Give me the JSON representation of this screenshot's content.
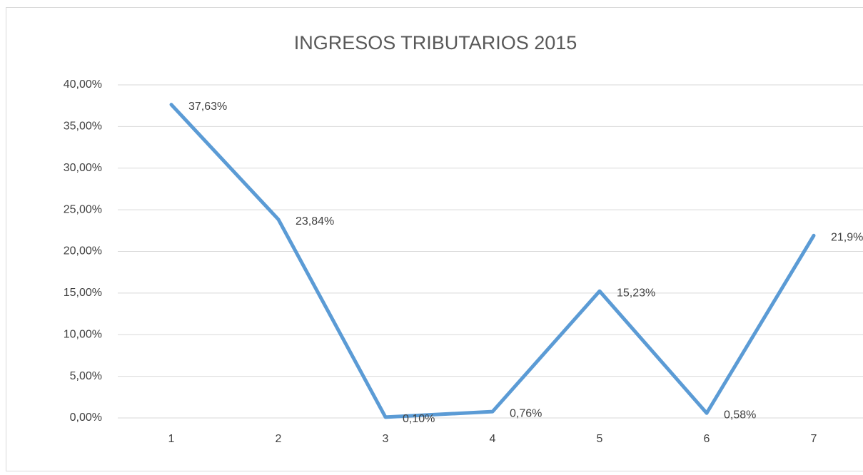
{
  "chart_data": {
    "type": "line",
    "title": "INGRESOS TRIBUTARIOS 2015",
    "categories": [
      "1",
      "2",
      "3",
      "4",
      "5",
      "6",
      "7"
    ],
    "series": [
      {
        "color": "#5b9bd5",
        "values": [
          37.63,
          23.84,
          0.1,
          0.76,
          15.23,
          0.58,
          21.9
        ],
        "value_labels": [
          "37,63%",
          "23,84%",
          "0,10%",
          "0,76%",
          "15,23%",
          "0,58%",
          "21,9%"
        ]
      }
    ],
    "ylim": [
      0,
      40
    ],
    "yticks": [
      {
        "value": 0,
        "label": "0,00%"
      },
      {
        "value": 5,
        "label": "5,00%"
      },
      {
        "value": 10,
        "label": "10,00%"
      },
      {
        "value": 15,
        "label": "15,00%"
      },
      {
        "value": 20,
        "label": "20,00%"
      },
      {
        "value": 25,
        "label": "25,00%"
      },
      {
        "value": 30,
        "label": "30,00%"
      },
      {
        "value": 35,
        "label": "35,00%"
      },
      {
        "value": 40,
        "label": "40,00%"
      }
    ],
    "grid": true
  }
}
